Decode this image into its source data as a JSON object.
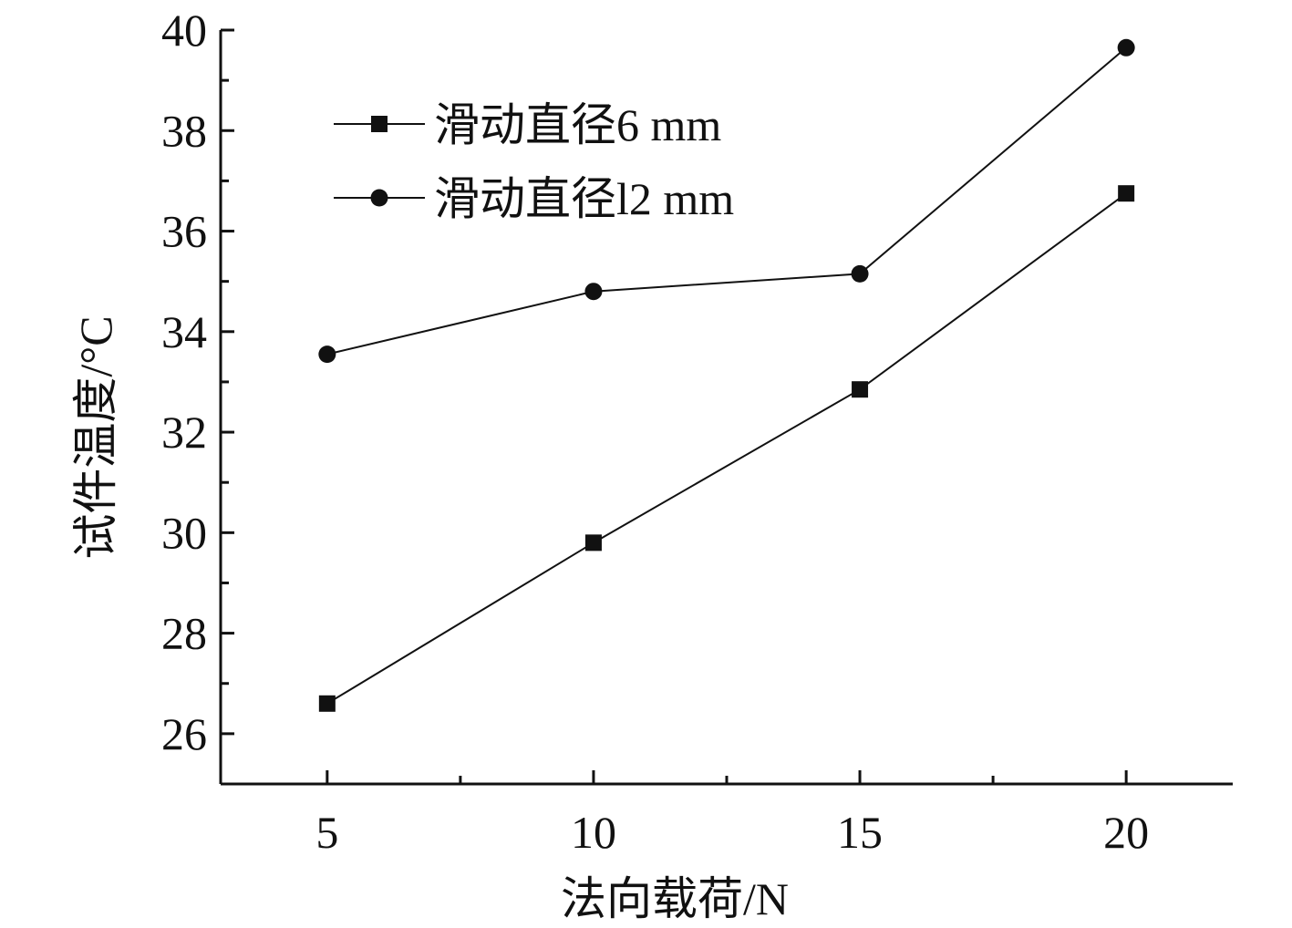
{
  "chart_data": {
    "type": "line",
    "title": "",
    "xlabel": "法向载荷/N",
    "ylabel": "试件温度/°C",
    "x": [
      5,
      10,
      15,
      20
    ],
    "xlim": [
      3,
      22
    ],
    "ylim": [
      25,
      40
    ],
    "xticks": [
      5,
      10,
      15,
      20
    ],
    "xtick_labels": [
      "5",
      "10",
      "15",
      "20"
    ],
    "yticks": [
      26,
      28,
      30,
      32,
      34,
      36,
      38,
      40
    ],
    "ytick_labels": [
      "26",
      "28",
      "30",
      "32",
      "34",
      "36",
      "38",
      "40"
    ],
    "grid": false,
    "legend_position": "top-left",
    "series": [
      {
        "name": "滑动直径6 mm",
        "marker": "square",
        "color": "#111111",
        "values": [
          26.6,
          29.8,
          32.85,
          36.75
        ]
      },
      {
        "name": "滑动直径l2 mm",
        "marker": "circle",
        "color": "#111111",
        "values": [
          33.55,
          34.8,
          35.15,
          39.65
        ]
      }
    ]
  }
}
